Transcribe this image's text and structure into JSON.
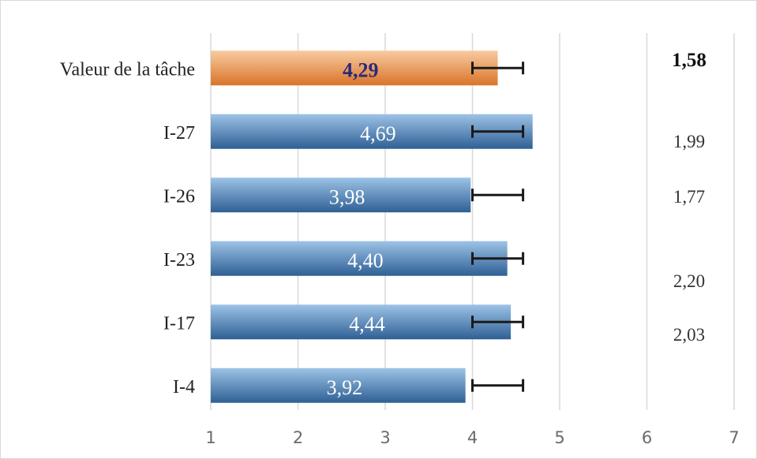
{
  "chart_data": {
    "type": "bar",
    "orientation": "horizontal",
    "categories": [
      "Valeur de la tâche",
      "I-27",
      "I-26",
      "I-23",
      "I-17",
      "I-4"
    ],
    "values": [
      4.29,
      4.69,
      3.98,
      4.4,
      4.44,
      3.92
    ],
    "value_labels": [
      "4,29",
      "4,69",
      "3,98",
      "4,40",
      "4,44",
      "3,92"
    ],
    "error_bars": [
      [
        4.0,
        4.58
      ],
      [
        4.0,
        4.58
      ],
      [
        4.0,
        4.58
      ],
      [
        4.0,
        4.58
      ],
      [
        4.0,
        4.58
      ],
      [
        4.0,
        4.58
      ]
    ],
    "secondary_values": [
      1.58,
      1.99,
      1.77,
      2.2,
      2.03
    ],
    "secondary_labels": [
      "1,58",
      "1,99",
      "1,77",
      "2,20",
      "2,03"
    ],
    "highlight_category": "Valeur de la tâche",
    "xlim": [
      1,
      7
    ],
    "x_ticks": [
      1,
      2,
      3,
      4,
      5,
      6,
      7
    ],
    "x_tick_labels": [
      "1",
      "2",
      "3",
      "4",
      "5",
      "6",
      "7"
    ],
    "grid": "vertical",
    "title": "",
    "xlabel": "",
    "ylabel": "",
    "colors": {
      "bar_top": "#9dc3e6",
      "bar_bottom": "#2e5f95",
      "highlight_top": "#f8cba0",
      "highlight_bottom": "#d9742a",
      "error_bar": "#1a1a1a",
      "grid": "#d9d9d9"
    }
  }
}
